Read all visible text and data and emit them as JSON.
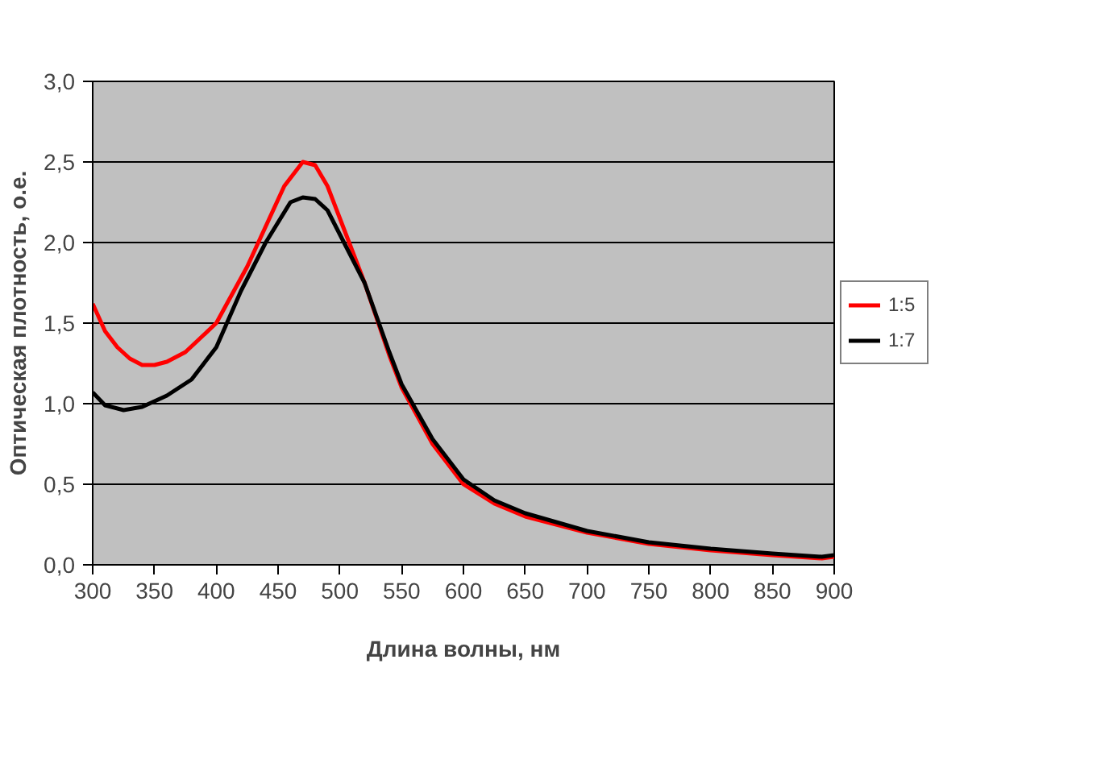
{
  "chart_data": {
    "type": "line",
    "xlabel": "Длина волны, нм",
    "ylabel": "Оптическая плотность, о.е.",
    "xlim": [
      300,
      900
    ],
    "ylim": [
      0,
      3
    ],
    "xticks": [
      300,
      350,
      400,
      450,
      500,
      550,
      600,
      650,
      700,
      750,
      800,
      850,
      900
    ],
    "yticks": [
      {
        "value": 0,
        "label": "0,0"
      },
      {
        "value": 0.5,
        "label": "0,5"
      },
      {
        "value": 1,
        "label": "1,0"
      },
      {
        "value": 1.5,
        "label": "1,5"
      },
      {
        "value": 2,
        "label": "2,0"
      },
      {
        "value": 2.5,
        "label": "2,5"
      },
      {
        "value": 3,
        "label": "3,0"
      }
    ],
    "grid": "y",
    "legend": "right",
    "line_style": "solid",
    "marker": "none",
    "series": [
      {
        "name": "1:5",
        "color": "#ff0000",
        "x": [
          300,
          310,
          320,
          330,
          340,
          350,
          360,
          375,
          400,
          425,
          440,
          455,
          470,
          480,
          490,
          500,
          520,
          540,
          550,
          575,
          600,
          625,
          650,
          700,
          750,
          800,
          850,
          890,
          900
        ],
        "values": [
          1.62,
          1.45,
          1.35,
          1.28,
          1.24,
          1.24,
          1.26,
          1.32,
          1.5,
          1.85,
          2.1,
          2.35,
          2.5,
          2.48,
          2.35,
          2.15,
          1.75,
          1.3,
          1.1,
          0.75,
          0.5,
          0.38,
          0.3,
          0.2,
          0.13,
          0.09,
          0.06,
          0.04,
          0.05
        ]
      },
      {
        "name": "1:7",
        "color": "#000000",
        "x": [
          300,
          310,
          325,
          340,
          360,
          380,
          400,
          420,
          440,
          460,
          470,
          480,
          490,
          500,
          520,
          540,
          550,
          575,
          600,
          625,
          650,
          700,
          750,
          800,
          850,
          890,
          900
        ],
        "values": [
          1.07,
          0.99,
          0.96,
          0.98,
          1.05,
          1.15,
          1.35,
          1.7,
          2.0,
          2.25,
          2.28,
          2.27,
          2.2,
          2.05,
          1.75,
          1.32,
          1.12,
          0.78,
          0.53,
          0.4,
          0.32,
          0.21,
          0.14,
          0.1,
          0.07,
          0.05,
          0.06
        ]
      }
    ]
  }
}
